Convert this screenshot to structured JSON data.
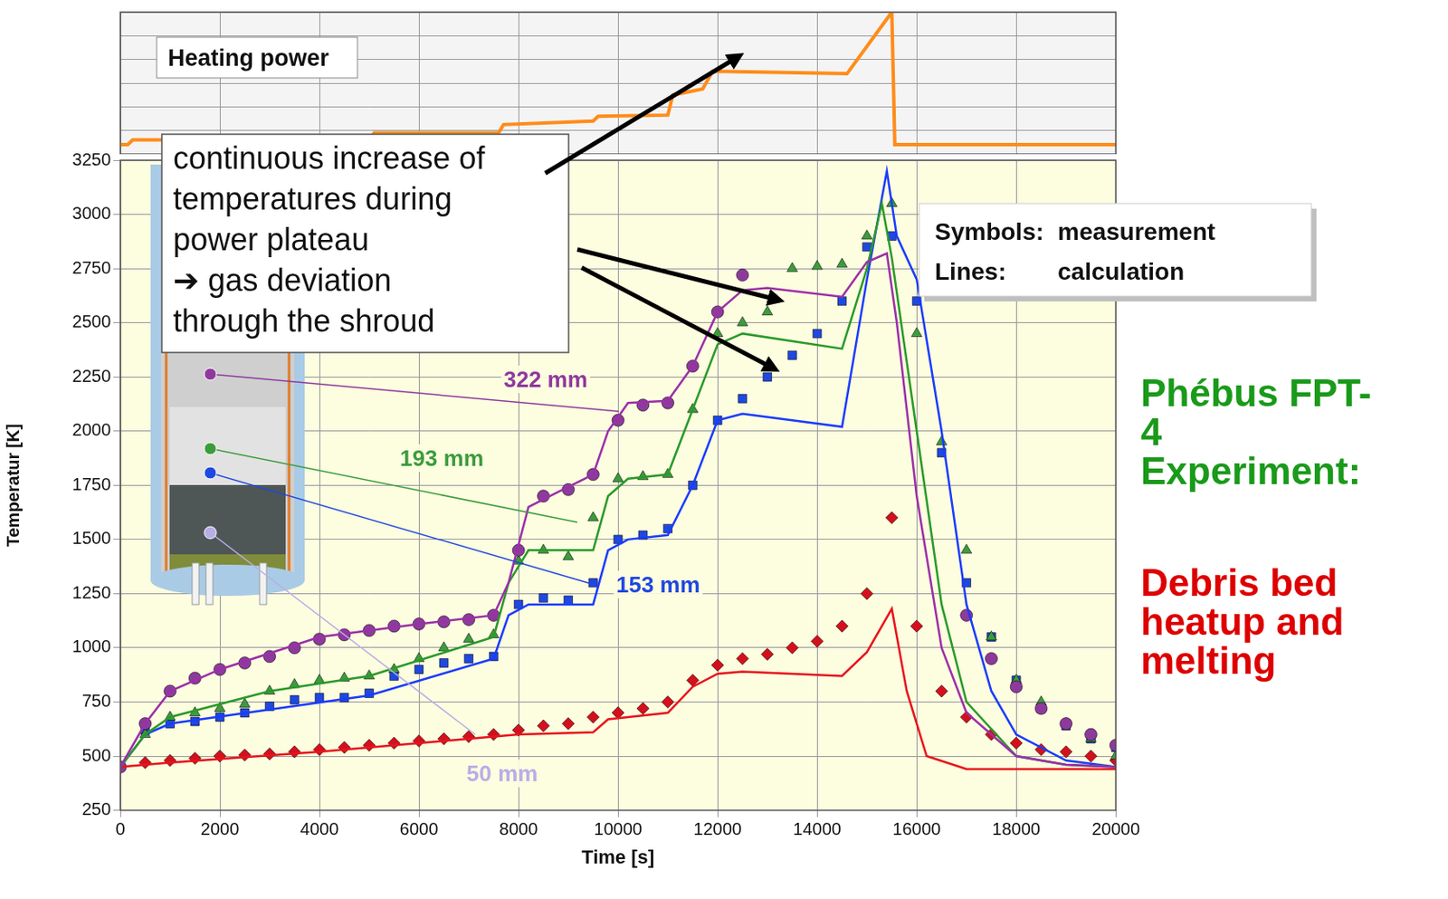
{
  "chart_data": [
    {
      "type": "line",
      "title": "Heating power",
      "x": [
        0,
        150,
        250,
        5000,
        5100,
        7600,
        7700,
        9500,
        9600,
        11000,
        11100,
        11700,
        11900,
        14600,
        15500,
        15560,
        20000
      ],
      "values": [
        0.8,
        0.8,
        1.2,
        1.2,
        1.8,
        1.8,
        2.5,
        2.8,
        3.2,
        3.3,
        5.0,
        5.5,
        7.0,
        6.8,
        12,
        0.8,
        0.8
      ],
      "color": "#ff8c1a",
      "xlim": [
        0,
        20000
      ],
      "xticks": [
        0,
        2000,
        4000,
        6000,
        8000,
        10000,
        12000,
        14000,
        16000,
        18000,
        20000
      ],
      "ylim": [
        0,
        12
      ],
      "yticks": [
        0,
        2,
        4,
        6,
        8,
        10,
        12
      ],
      "tick_labels": false,
      "grid": true
    },
    {
      "type": "line",
      "x_label": "Time [s]",
      "y_label": "Temperatur [K]",
      "xlim": [
        0,
        20000
      ],
      "xticks": [
        0,
        2000,
        4000,
        6000,
        8000,
        10000,
        12000,
        14000,
        16000,
        18000,
        20000
      ],
      "ylim": [
        250,
        3250
      ],
      "yticks": [
        250,
        500,
        750,
        1000,
        1250,
        1500,
        1750,
        2000,
        2250,
        2500,
        2750,
        3000,
        3250
      ],
      "grid": true,
      "series": [
        {
          "name": "322 mm",
          "type": "scatter",
          "marker": "circle",
          "color": "#8e3a9d",
          "x": [
            0,
            500,
            1000,
            1500,
            2000,
            2500,
            3000,
            3500,
            4000,
            4500,
            5000,
            5500,
            6000,
            6500,
            7000,
            7500,
            8000,
            8500,
            9000,
            9500,
            10000,
            10500,
            11000,
            11500,
            12000,
            12500,
            13000,
            13500,
            14000,
            14500,
            15000,
            15500,
            16000,
            16500,
            17000,
            17500,
            18000,
            18500,
            19000,
            19500,
            20000
          ],
          "values": [
            450,
            650,
            800,
            860,
            900,
            930,
            960,
            1000,
            1040,
            1060,
            1080,
            1100,
            1110,
            1120,
            1130,
            1150,
            1450,
            1700,
            1730,
            1800,
            2050,
            2120,
            2130,
            2300,
            2550,
            2720,
            null,
            null,
            null,
            null,
            null,
            null,
            null,
            null,
            1150,
            950,
            820,
            720,
            650,
            600,
            550
          ]
        },
        {
          "name": "193 mm",
          "type": "scatter",
          "marker": "triangle",
          "color": "#3c9c3c",
          "x": [
            0,
            500,
            1000,
            1500,
            2000,
            2500,
            3000,
            3500,
            4000,
            4500,
            5000,
            5500,
            6000,
            6500,
            7000,
            7500,
            8000,
            8500,
            9000,
            9500,
            10000,
            10500,
            11000,
            11500,
            12000,
            12500,
            13000,
            13500,
            14000,
            14500,
            15000,
            15500,
            16000,
            16500,
            17000,
            17500,
            18000,
            18500,
            19000,
            19500,
            20000
          ],
          "values": [
            450,
            600,
            680,
            700,
            720,
            740,
            800,
            830,
            850,
            860,
            870,
            900,
            950,
            1000,
            1040,
            1060,
            1400,
            1450,
            1420,
            1600,
            1780,
            1790,
            1800,
            2100,
            2450,
            2500,
            2550,
            2750,
            2760,
            2770,
            2900,
            3050,
            2450,
            1950,
            1450,
            1050,
            850,
            750,
            650,
            580,
            500
          ]
        },
        {
          "name": "153 mm",
          "type": "scatter",
          "marker": "square",
          "color": "#1f48e0",
          "x": [
            0,
            500,
            1000,
            1500,
            2000,
            2500,
            3000,
            3500,
            4000,
            4500,
            5000,
            5500,
            6000,
            6500,
            7000,
            7500,
            8000,
            8500,
            9000,
            9500,
            10000,
            10500,
            11000,
            11500,
            12000,
            12500,
            13000,
            13500,
            14000,
            14500,
            15000,
            15500,
            16000,
            16500,
            17000,
            17500,
            18000,
            18500,
            19000,
            19500,
            20000
          ],
          "values": [
            450,
            620,
            650,
            660,
            680,
            700,
            730,
            760,
            770,
            770,
            790,
            870,
            900,
            930,
            950,
            960,
            1200,
            1230,
            1220,
            1300,
            1500,
            1520,
            1550,
            1750,
            2050,
            2150,
            2250,
            2350,
            2450,
            2600,
            2850,
            2900,
            2600,
            1900,
            1300,
            1050,
            850,
            720,
            640,
            580,
            540
          ]
        },
        {
          "name": "50 mm",
          "type": "scatter",
          "marker": "diamond",
          "color": "#d4101c",
          "x": [
            0,
            500,
            1000,
            1500,
            2000,
            2500,
            3000,
            3500,
            4000,
            4500,
            5000,
            5500,
            6000,
            6500,
            7000,
            7500,
            8000,
            8500,
            9000,
            9500,
            10000,
            10500,
            11000,
            11500,
            12000,
            12500,
            13000,
            13500,
            14000,
            14500,
            15000,
            15500,
            16000,
            16500,
            17000,
            17500,
            18000,
            18500,
            19000,
            19500,
            20000
          ],
          "values": [
            450,
            470,
            480,
            490,
            500,
            505,
            510,
            520,
            530,
            540,
            550,
            560,
            570,
            580,
            590,
            600,
            620,
            640,
            650,
            680,
            700,
            720,
            750,
            850,
            920,
            950,
            970,
            1000,
            1030,
            1100,
            1250,
            1600,
            1100,
            800,
            680,
            600,
            560,
            530,
            520,
            500,
            480
          ]
        },
        {
          "type": "line",
          "line_style": "solid",
          "color": "#9b30a8",
          "x": [
            0,
            500,
            1000,
            2000,
            4000,
            6000,
            7500,
            7800,
            8200,
            8800,
            9500,
            9800,
            10200,
            11000,
            11500,
            12000,
            12500,
            13000,
            14500,
            15000,
            15400,
            15600,
            16000,
            16500,
            17000,
            18000,
            19000,
            20000
          ],
          "values": [
            450,
            650,
            800,
            900,
            1050,
            1110,
            1150,
            1300,
            1650,
            1720,
            1800,
            2000,
            2130,
            2140,
            2300,
            2550,
            2650,
            2660,
            2620,
            2780,
            2820,
            2500,
            1700,
            1000,
            700,
            500,
            460,
            450
          ]
        },
        {
          "type": "line",
          "line_style": "solid",
          "color": "#2a9a2a",
          "x": [
            0,
            500,
            1000,
            3000,
            5000,
            7500,
            7800,
            8200,
            9500,
            9800,
            10200,
            11000,
            11500,
            12000,
            12500,
            14500,
            15000,
            15300,
            15500,
            16000,
            16500,
            17000,
            18000,
            19000,
            20000
          ],
          "values": [
            450,
            600,
            680,
            800,
            870,
            1050,
            1300,
            1450,
            1450,
            1700,
            1780,
            1800,
            2100,
            2400,
            2450,
            2380,
            2750,
            3050,
            2800,
            2000,
            1200,
            750,
            500,
            460,
            450
          ]
        },
        {
          "type": "line",
          "line_style": "solid",
          "color": "#1a3cff",
          "x": [
            0,
            500,
            1000,
            5000,
            7500,
            7800,
            8200,
            9500,
            9800,
            10200,
            11000,
            11500,
            12000,
            12500,
            14500,
            15000,
            15400,
            15600,
            16000,
            16500,
            17000,
            17500,
            18000,
            19000,
            20000
          ],
          "values": [
            450,
            600,
            650,
            780,
            950,
            1150,
            1200,
            1200,
            1450,
            1500,
            1520,
            1750,
            2050,
            2080,
            2020,
            2700,
            3200,
            2900,
            2700,
            2000,
            1200,
            800,
            600,
            480,
            450
          ]
        },
        {
          "type": "line",
          "line_style": "solid",
          "color": "#e8141c",
          "x": [
            0,
            1000,
            4000,
            7500,
            8000,
            9500,
            9800,
            10200,
            11000,
            11500,
            12000,
            12500,
            14500,
            15000,
            15500,
            15800,
            16200,
            17000,
            20000
          ],
          "values": [
            450,
            470,
            520,
            590,
            600,
            610,
            670,
            680,
            700,
            820,
            880,
            890,
            870,
            980,
            1180,
            800,
            500,
            440,
            440
          ]
        }
      ],
      "note": "continuous increase of\ntemperatures during\npower plateau\n ➔ gas deviation\nthrough the shroud",
      "key": [
        "Symbols: measurement",
        "Lines: calculation"
      ],
      "side_notes": [
        {
          "text": "Phébus FPT-4 Experiment:",
          "color": "#1a9a1a"
        },
        {
          "text": "Debris bed heatup and melting",
          "color": "#dd0000"
        }
      ]
    }
  ]
}
